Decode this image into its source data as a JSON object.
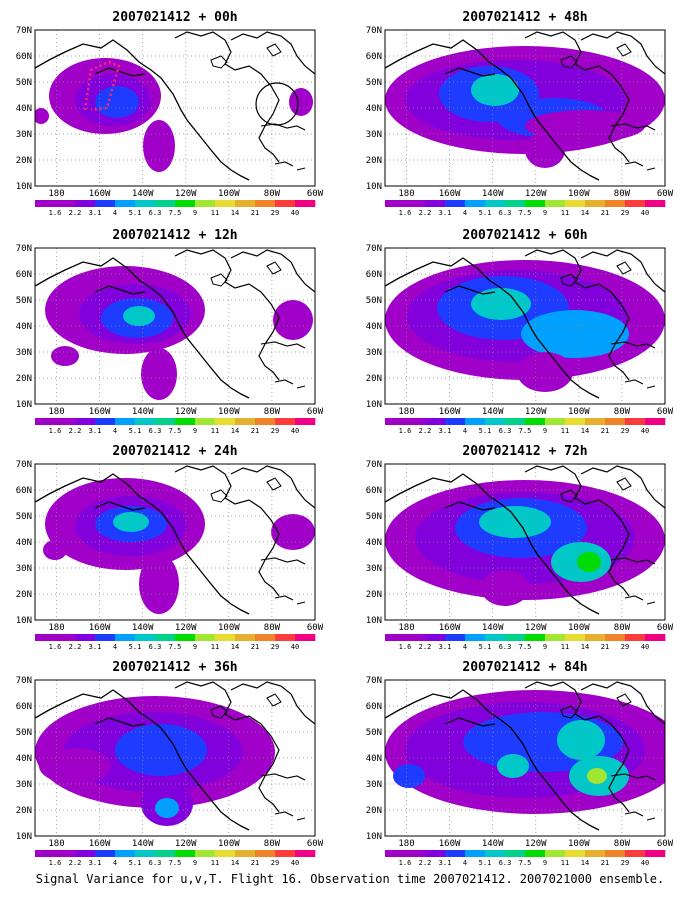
{
  "panels": [
    {
      "title": "2007021412 + 00h",
      "lead": "00h"
    },
    {
      "title": "2007021412 + 48h",
      "lead": "48h"
    },
    {
      "title": "2007021412 + 12h",
      "lead": "12h"
    },
    {
      "title": "2007021412 + 60h",
      "lead": "60h"
    },
    {
      "title": "2007021412 + 24h",
      "lead": "24h"
    },
    {
      "title": "2007021412 + 72h",
      "lead": "72h"
    },
    {
      "title": "2007021412 + 36h",
      "lead": "36h"
    },
    {
      "title": "2007021412 + 84h",
      "lead": "84h"
    }
  ],
  "map": {
    "lon_labels": [
      "180",
      "160W",
      "140W",
      "120W",
      "100W",
      "80W",
      "60W"
    ],
    "lon_values": [
      -180,
      -160,
      -140,
      -120,
      -100,
      -80,
      -60
    ],
    "lat_labels": [
      "10N",
      "20N",
      "30N",
      "40N",
      "50N",
      "60N",
      "70N"
    ],
    "lat_values": [
      10,
      20,
      30,
      40,
      50,
      60,
      70
    ],
    "lon_range": [
      -190,
      -60
    ],
    "lat_range": [
      10,
      70
    ],
    "grid": "dotted"
  },
  "colorbar": {
    "labels": [
      "1.6",
      "2.2",
      "3.1",
      "4",
      "5.1",
      "6.3",
      "7.5",
      "9",
      "11",
      "14",
      "21",
      "29",
      "40"
    ],
    "colors": [
      "#a000c8",
      "#8200dc",
      "#1e3cff",
      "#00a0ff",
      "#00c8c8",
      "#00d28c",
      "#00dc00",
      "#a0e632",
      "#e6dc32",
      "#e6af2d",
      "#f08228",
      "#fa3c3c",
      "#f00082"
    ]
  },
  "caption": "Signal Variance for u,v,T. Flight 16. Observation time 2007021412. 2007021000 ensemble."
}
